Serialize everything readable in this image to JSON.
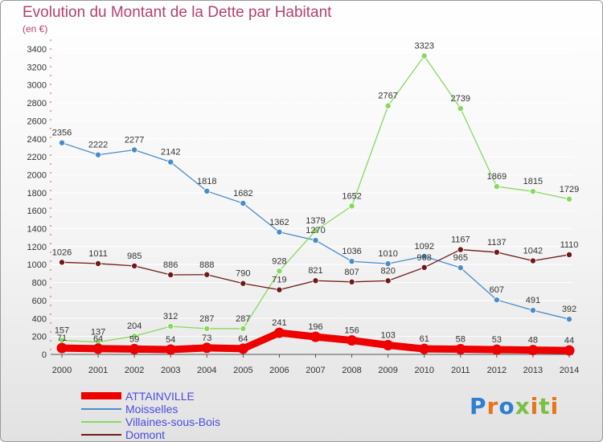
{
  "title": "Evolution du Montant de la Dette par Habitant",
  "subtitle": "(en €)",
  "logo": {
    "text": [
      "P",
      "r",
      "o",
      "x",
      "i",
      "t",
      "i"
    ],
    "colors": [
      "#2e7fd1",
      "#e8731a",
      "#2e7fd1",
      "#7bc043",
      "#e8731a",
      "#7bc043",
      "#e8731a"
    ]
  },
  "chart_data": {
    "type": "line",
    "title": "Evolution du Montant de la Dette par Habitant",
    "ylabel": "(en €)",
    "ylim": [
      0,
      3400
    ],
    "yticks": [
      0,
      200,
      400,
      600,
      800,
      1000,
      1200,
      1400,
      1600,
      1800,
      2000,
      2200,
      2400,
      2600,
      2800,
      3000,
      3200,
      3400
    ],
    "categories": [
      "2000",
      "2001",
      "2002",
      "2003",
      "2004",
      "2005",
      "2006",
      "2007",
      "2008",
      "2009",
      "2010",
      "2011",
      "2012",
      "2013",
      "2014"
    ],
    "series": [
      {
        "name": "ATTAINVILLE",
        "color": "#ee0000",
        "width": 9,
        "values": [
          71,
          64,
          59,
          54,
          73,
          64,
          241,
          196,
          156,
          103,
          61,
          58,
          53,
          48,
          44
        ],
        "labels": [
          "71",
          "64",
          "59",
          "54",
          "73",
          "64",
          "241",
          "196",
          "156",
          "103",
          "61",
          "58",
          "53",
          "48",
          "44"
        ]
      },
      {
        "name": "Moisselles",
        "color": "#4a8cc8",
        "width": 1.3,
        "values": [
          2356,
          2222,
          2277,
          2142,
          1818,
          1682,
          1362,
          1270,
          1036,
          1010,
          1092,
          965,
          607,
          491,
          392
        ],
        "labels": [
          "2356",
          "2222",
          "2277",
          "2142",
          "1818",
          "1682",
          "1362",
          "1270",
          "1036",
          "1010",
          "1092",
          "965",
          "607",
          "491",
          "392"
        ]
      },
      {
        "name": "Villaines-sous-Bois",
        "color": "#88d860",
        "width": 1.3,
        "values": [
          157,
          137,
          204,
          312,
          287,
          287,
          928,
          1379,
          1652,
          2767,
          3323,
          2739,
          1869,
          1815,
          1729
        ],
        "labels": [
          "157",
          "137",
          "204",
          "312",
          "287",
          "287",
          "928",
          "1379",
          "1652",
          "2767",
          "3323",
          "2739",
          "1869",
          "1815",
          "1729"
        ]
      },
      {
        "name": "Domont",
        "color": "#6e1a1a",
        "width": 1.3,
        "values": [
          1026,
          1011,
          985,
          886,
          888,
          790,
          719,
          821,
          807,
          820,
          968,
          1167,
          1137,
          1042,
          1110
        ],
        "labels": [
          "1026",
          "1011",
          "985",
          "886",
          "888",
          "790",
          "719",
          "821",
          "807",
          "820",
          "968",
          "1167",
          "1137",
          "1042",
          "1110"
        ]
      }
    ]
  }
}
